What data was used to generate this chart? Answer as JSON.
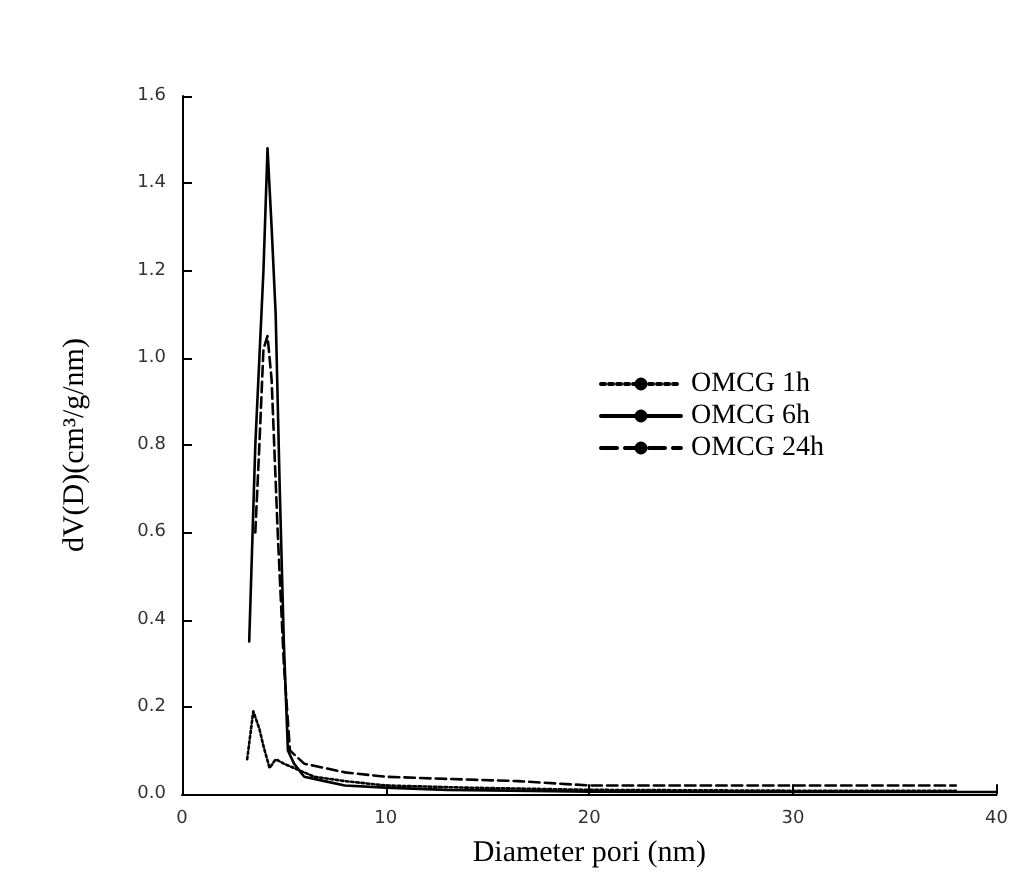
{
  "chart_data": {
    "type": "line",
    "xlabel": "Diameter pori (nm)",
    "ylabel": "dV(D)(cm³/g/nm)",
    "xlim": [
      0,
      40
    ],
    "xticks": [
      0,
      10,
      20,
      30,
      40
    ],
    "ylim": [
      0,
      1.6
    ],
    "yticks": [
      {
        "value": 0,
        "label": "0.0"
      },
      {
        "value": 0.2,
        "label": "0.2"
      },
      {
        "value": 0.4,
        "label": "0.4"
      },
      {
        "value": 0.6,
        "label": "0.6"
      },
      {
        "value": 0.8,
        "label": "0.8"
      },
      {
        "value": 1,
        "label": "1.0"
      },
      {
        "value": 1.2,
        "label": "1.2"
      },
      {
        "value": 1.4,
        "label": "1.4"
      },
      {
        "value": 1.6,
        "label": "1.6"
      }
    ],
    "grid": false,
    "legend": "right",
    "marker": "none",
    "series": [
      {
        "name": "OMCG 1h",
        "color": "#000000",
        "line_style": "dotted",
        "x": [
          3.2,
          3.5,
          3.8,
          4.0,
          4.3,
          4.6,
          5.0,
          5.5,
          6.5,
          8,
          10,
          14,
          20,
          30,
          38
        ],
        "values": [
          0.08,
          0.19,
          0.15,
          0.11,
          0.06,
          0.08,
          0.07,
          0.06,
          0.04,
          0.03,
          0.02,
          0.015,
          0.01,
          0.008,
          0.008
        ]
      },
      {
        "name": "OMCG 6h",
        "color": "#000000",
        "line_style": "solid",
        "x": [
          3.3,
          3.6,
          3.8,
          4.0,
          4.2,
          4.4,
          4.6,
          4.8,
          5.0,
          5.2,
          5.5,
          6,
          7,
          8,
          10,
          13,
          20,
          30,
          40
        ],
        "values": [
          0.35,
          0.8,
          1.0,
          1.2,
          1.48,
          1.3,
          1.1,
          0.7,
          0.35,
          0.1,
          0.07,
          0.04,
          0.03,
          0.02,
          0.015,
          0.01,
          0.006,
          0.005,
          0.005
        ]
      },
      {
        "name": "OMCG 24h",
        "color": "#000000",
        "line_style": "dashed",
        "x": [
          3.6,
          3.8,
          4.0,
          4.2,
          4.4,
          4.7,
          5.0,
          5.3,
          6,
          7,
          8,
          10,
          13,
          16.5,
          20,
          30,
          38
        ],
        "values": [
          0.6,
          0.8,
          1.02,
          1.05,
          0.95,
          0.6,
          0.3,
          0.1,
          0.07,
          0.06,
          0.05,
          0.04,
          0.035,
          0.03,
          0.02,
          0.02,
          0.02
        ]
      }
    ]
  }
}
